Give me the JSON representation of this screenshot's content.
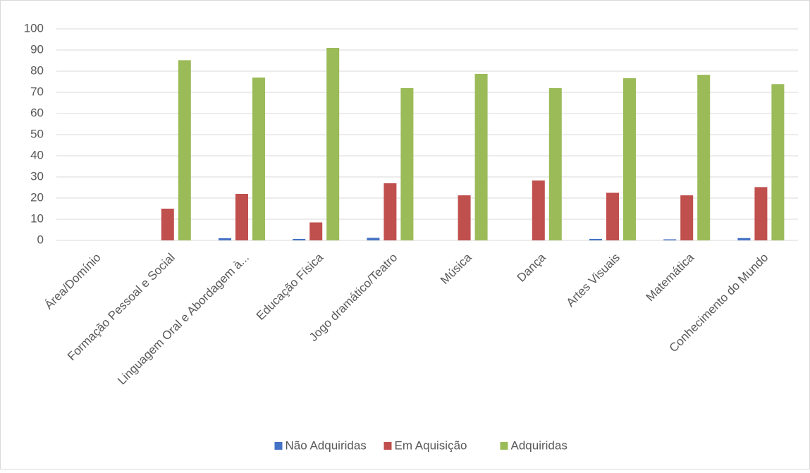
{
  "chart_data": {
    "type": "bar",
    "categories": [
      "Área/Domínio",
      "Formação Pessoal e Social",
      "Linguagem Oral e Abordagem à...",
      "Educação Física",
      "Jogo dramático/Teatro",
      "Música",
      "Dança",
      "Artes Visuais",
      "Matemática",
      "Conhecimento do Mundo"
    ],
    "series": [
      {
        "name": "Não Adquiridas",
        "color": "#4472c4",
        "values": [
          null,
          0,
          1,
          0.7,
          1.2,
          0,
          0,
          0.7,
          0.5,
          1.1
        ]
      },
      {
        "name": "Em Aquisição",
        "color": "#c0504d",
        "values": [
          null,
          15,
          22,
          8.5,
          27,
          21.3,
          28.3,
          22.5,
          21.3,
          25.2
        ]
      },
      {
        "name": "Adquiridas",
        "color": "#9bbb59",
        "values": [
          null,
          85.2,
          77,
          91,
          72,
          78.7,
          72,
          76.7,
          78.3,
          73.9
        ]
      }
    ],
    "ylim": [
      0,
      100
    ],
    "yticks": [
      0,
      10,
      20,
      30,
      40,
      50,
      60,
      70,
      80,
      90,
      100
    ],
    "grid": true,
    "legend": "bottom"
  }
}
